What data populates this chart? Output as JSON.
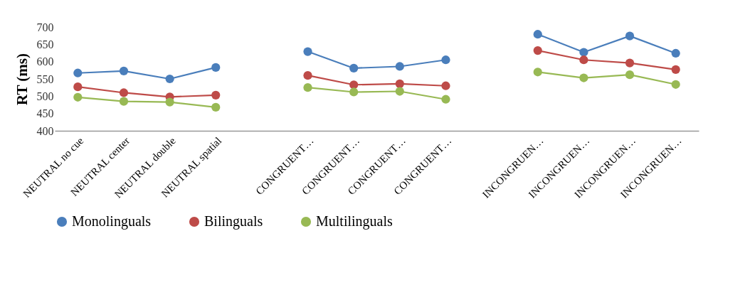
{
  "chart_data": {
    "type": "line",
    "ylabel": "RT (ms)",
    "categories": [
      "NEUTRAL no cue",
      "NEUTRAL center",
      "NEUTRAL double",
      "NEUTRAL spatial",
      null,
      "CONGRUENT…",
      "CONGRUENT…",
      "CONGRUENT…",
      "CONGRUENT…",
      null,
      "INCONGRUEN…",
      "INCONGRUEN…",
      "INCONGRUEN…",
      "INCONGRUEN…"
    ],
    "series": [
      {
        "name": "Monolinguals",
        "color": "#4a7ebb",
        "values": [
          567,
          573,
          550,
          583,
          null,
          629,
          581,
          586,
          605,
          null,
          679,
          627,
          674,
          624
        ]
      },
      {
        "name": "Bilinguals",
        "color": "#be4b48",
        "values": [
          527,
          510,
          498,
          503,
          null,
          560,
          533,
          536,
          530,
          null,
          632,
          605,
          596,
          577
        ]
      },
      {
        "name": "Multilinguals",
        "color": "#98b954",
        "values": [
          497,
          485,
          483,
          468,
          null,
          525,
          512,
          514,
          491,
          null,
          570,
          553,
          562,
          534
        ]
      }
    ],
    "ylim": [
      400,
      700
    ],
    "yticks": [
      400,
      450,
      500,
      550,
      600,
      650,
      700
    ],
    "legend": "bottom",
    "marker": "circle",
    "line_style": "solid"
  }
}
